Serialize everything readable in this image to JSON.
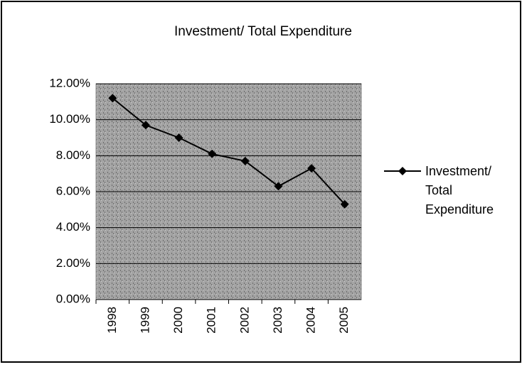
{
  "chart_data": {
    "type": "line",
    "title": "Investment/ Total Expenditure",
    "categories": [
      "1998",
      "1999",
      "2000",
      "2001",
      "2002",
      "2003",
      "2004",
      "2005"
    ],
    "series": [
      {
        "name": "Investment/ Total Expenditure",
        "color": "#000000",
        "values": [
          11.2,
          9.7,
          9.0,
          8.1,
          7.7,
          6.3,
          7.3,
          5.3
        ]
      }
    ],
    "ylim": [
      0,
      12
    ],
    "yticks": [
      {
        "value": 0,
        "label": "0.00%"
      },
      {
        "value": 2,
        "label": "2.00%"
      },
      {
        "value": 4,
        "label": "4.00%"
      },
      {
        "value": 6,
        "label": "6.00%"
      },
      {
        "value": 8,
        "label": "8.00%"
      },
      {
        "value": 10,
        "label": "10.00%"
      },
      {
        "value": 12,
        "label": "12.00%"
      }
    ],
    "grid": true,
    "legend": "right"
  }
}
